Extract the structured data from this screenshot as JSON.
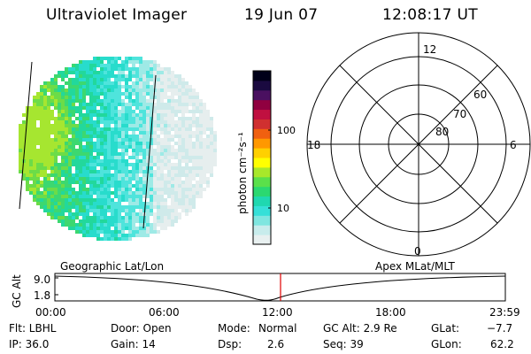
{
  "header": {
    "instrument": "Ultraviolet Imager",
    "date": "19 Jun 07",
    "time": "12:08:17 UT"
  },
  "colorbar": {
    "unit_label": "photon cm⁻²s⁻¹",
    "ticks": [
      "100",
      "10"
    ],
    "colors": [
      "#e8f0f0",
      "#c8ecec",
      "#7fe6e0",
      "#36e0d8",
      "#1fd8b0",
      "#2bd870",
      "#5be04a",
      "#a8e82a",
      "#ffff00",
      "#ffd000",
      "#ff9800",
      "#f06010",
      "#d03030",
      "#c01040",
      "#900040",
      "#4a1060",
      "#1a0a40",
      "#000018"
    ]
  },
  "polar": {
    "clock_labels": {
      "top": "12",
      "left": "18",
      "right": "6",
      "bottom": "0"
    },
    "lat_labels": [
      "60",
      "70",
      "80"
    ]
  },
  "timeline": {
    "left_label": "Geographic Lat/Lon",
    "right_label": "Apex MLat/MLT",
    "axis_label": "GC Alt",
    "y_ticks": [
      "9.0",
      "1.8"
    ],
    "x_ticks": [
      "00:00",
      "06:00",
      "12:00",
      "18:00",
      "23:59"
    ],
    "marker_color": "#e00000"
  },
  "info": {
    "row1": {
      "flt": "Flt: LBHL",
      "door": "Door: Open",
      "mode_label": "Mode:",
      "mode_value": "Normal",
      "gcalt": "GC Alt: 2.9 Re",
      "glat_label": "GLat:",
      "glat_value": "−7.7"
    },
    "row2": {
      "ip": "IP: 36.0",
      "gain": "Gain: 14",
      "dsp_label": "Dsp:",
      "dsp_value": "2.6",
      "seq": "Seq: 39",
      "glon_label": "GLon:",
      "glon_value": "62.2"
    }
  },
  "imager": {
    "palette": [
      "#e6eeee",
      "#cfeaea",
      "#9eeae6",
      "#4fe4dc",
      "#28dccc",
      "#22d89c",
      "#3cd870",
      "#6cdc48",
      "#a6e630"
    ]
  }
}
